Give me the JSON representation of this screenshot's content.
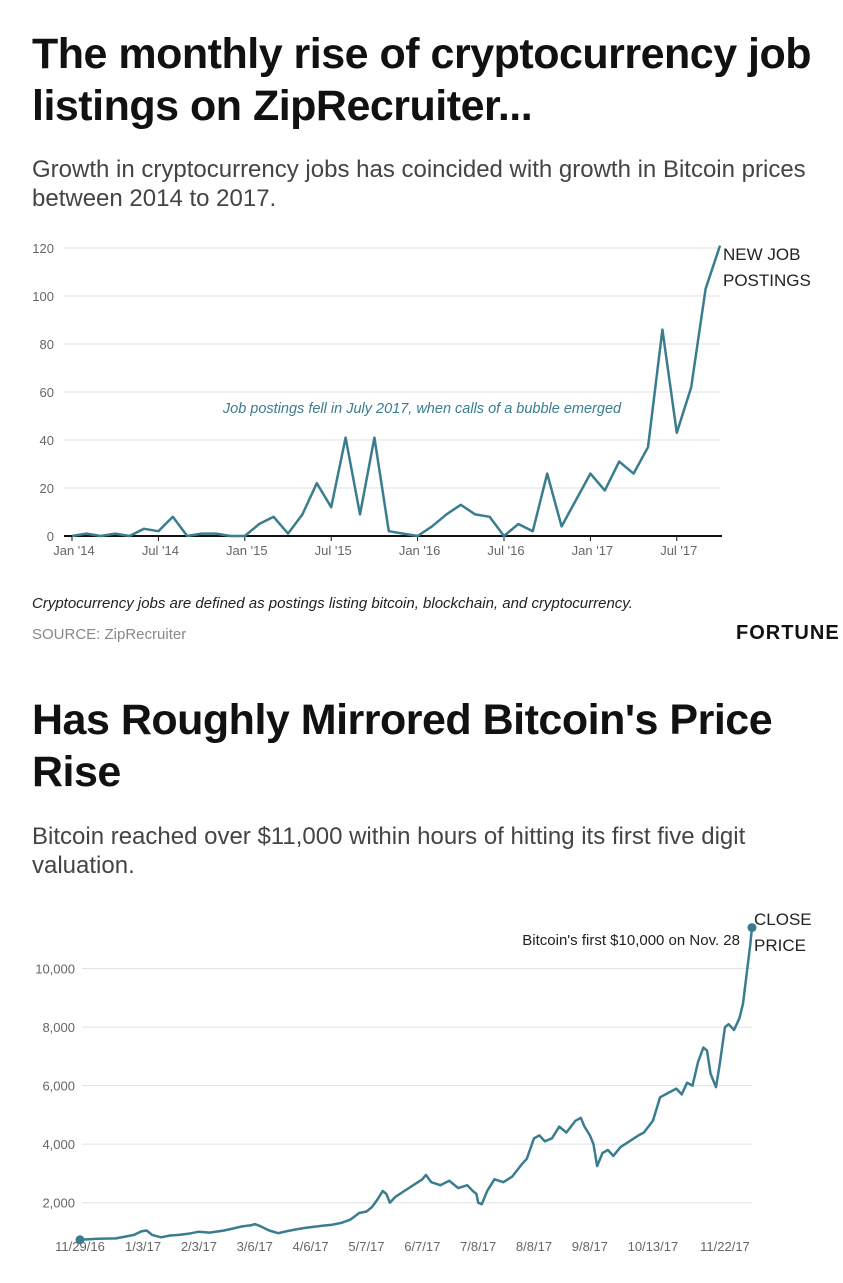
{
  "chart1": {
    "title": "The monthly rise of cryptocurrency job listings on ZipRecruiter...",
    "subtitle": "Growth in cryptocurrency jobs has coincided with growth in Bitcoin prices between 2014 to 2017.",
    "annotation": "Job postings fell in July 2017, when calls of a bubble emerged",
    "series_label": [
      "NEW JOB",
      "POSTINGS"
    ],
    "note": "Cryptocurrency jobs are defined as postings listing bitcoin, blockchain, and cryptocurrency.",
    "source": "SOURCE: ZipRecruiter",
    "brand": "FORTUNE"
  },
  "chart2": {
    "title": "Has Roughly Mirrored Bitcoin's Price Rise",
    "subtitle": "Bitcoin reached over $11,000 within hours of hitting its first five digit valuation.",
    "annotation": "Bitcoin's first $10,000 on Nov. 28",
    "series_label": [
      "CLOSE",
      "PRICE"
    ]
  },
  "colors": {
    "line": "#3a7d8e",
    "grid": "#e2e2e2",
    "axis": "#111111",
    "tick": "#666666"
  },
  "chart_data": [
    {
      "type": "line",
      "title": "The monthly rise of cryptocurrency job listings on ZipRecruiter...",
      "xlabel": "",
      "ylabel": "",
      "ylim": [
        0,
        120
      ],
      "yticks": [
        0,
        20,
        40,
        60,
        80,
        100,
        120
      ],
      "x_tick_labels": [
        "Jan '14",
        "Jul '14",
        "Jan '15",
        "Jul '15",
        "Jan '16",
        "Jul '16",
        "Jan '17",
        "Jul '17"
      ],
      "x_tick_months": [
        0,
        6,
        12,
        18,
        24,
        30,
        36,
        42
      ],
      "series": [
        {
          "name": "NEW JOB POSTINGS",
          "values": [
            0,
            1,
            0,
            1,
            0,
            3,
            2,
            8,
            0,
            1,
            1,
            0,
            0,
            5,
            8,
            1,
            9,
            22,
            12,
            41,
            9,
            41,
            2,
            1,
            0,
            4,
            9,
            13,
            9,
            8,
            0,
            5,
            2,
            26,
            4,
            15,
            26,
            19,
            31,
            26,
            37,
            86,
            43,
            62,
            103,
            121
          ]
        }
      ]
    },
    {
      "type": "line",
      "title": "Has Roughly Mirrored Bitcoin's Price Rise",
      "xlabel": "",
      "ylabel": "",
      "ylim": [
        1000,
        12000
      ],
      "yticks": [
        2000,
        4000,
        6000,
        8000,
        10000
      ],
      "ytick_labels": [
        "2,000",
        "4,000",
        "6,000",
        "8,000",
        "10,000"
      ],
      "x_tick_labels": [
        "11/29/16",
        "1/3/17",
        "2/3/17",
        "3/6/17",
        "4/6/17",
        "5/7/17",
        "6/7/17",
        "7/8/17",
        "8/8/17",
        "9/8/17",
        "10/13/17",
        "11/22/17"
      ],
      "x_tick_days": [
        0,
        35,
        66,
        97,
        128,
        159,
        190,
        221,
        252,
        283,
        318,
        358
      ],
      "series": [
        {
          "name": "CLOSE PRICE",
          "points": [
            [
              0,
              735
            ],
            [
              10,
              770
            ],
            [
              20,
              780
            ],
            [
              30,
              900
            ],
            [
              34,
              1020
            ],
            [
              37,
              1050
            ],
            [
              40,
              900
            ],
            [
              45,
              820
            ],
            [
              50,
              880
            ],
            [
              55,
              900
            ],
            [
              60,
              940
            ],
            [
              66,
              1010
            ],
            [
              72,
              980
            ],
            [
              80,
              1050
            ],
            [
              85,
              1120
            ],
            [
              90,
              1190
            ],
            [
              95,
              1230
            ],
            [
              97,
              1270
            ],
            [
              100,
              1200
            ],
            [
              105,
              1050
            ],
            [
              110,
              960
            ],
            [
              115,
              1030
            ],
            [
              120,
              1090
            ],
            [
              125,
              1140
            ],
            [
              130,
              1180
            ],
            [
              135,
              1220
            ],
            [
              140,
              1250
            ],
            [
              145,
              1310
            ],
            [
              150,
              1420
            ],
            [
              155,
              1650
            ],
            [
              159,
              1700
            ],
            [
              162,
              1850
            ],
            [
              165,
              2100
            ],
            [
              168,
              2400
            ],
            [
              170,
              2300
            ],
            [
              172,
              2000
            ],
            [
              175,
              2200
            ],
            [
              180,
              2400
            ],
            [
              185,
              2600
            ],
            [
              190,
              2800
            ],
            [
              192,
              2950
            ],
            [
              195,
              2700
            ],
            [
              200,
              2600
            ],
            [
              205,
              2750
            ],
            [
              210,
              2500
            ],
            [
              215,
              2600
            ],
            [
              218,
              2400
            ],
            [
              220,
              2300
            ],
            [
              221,
              2000
            ],
            [
              223,
              1950
            ],
            [
              226,
              2400
            ],
            [
              230,
              2800
            ],
            [
              235,
              2700
            ],
            [
              240,
              2900
            ],
            [
              245,
              3300
            ],
            [
              248,
              3500
            ],
            [
              252,
              4200
            ],
            [
              255,
              4300
            ],
            [
              258,
              4100
            ],
            [
              262,
              4200
            ],
            [
              266,
              4600
            ],
            [
              270,
              4400
            ],
            [
              275,
              4800
            ],
            [
              278,
              4900
            ],
            [
              280,
              4600
            ],
            [
              283,
              4300
            ],
            [
              285,
              4000
            ],
            [
              287,
              3250
            ],
            [
              290,
              3700
            ],
            [
              293,
              3800
            ],
            [
              296,
              3600
            ],
            [
              300,
              3900
            ],
            [
              305,
              4100
            ],
            [
              310,
              4300
            ],
            [
              313,
              4400
            ],
            [
              318,
              4800
            ],
            [
              322,
              5600
            ],
            [
              325,
              5700
            ],
            [
              328,
              5800
            ],
            [
              331,
              5900
            ],
            [
              334,
              5700
            ],
            [
              337,
              6100
            ],
            [
              340,
              6000
            ],
            [
              343,
              6800
            ],
            [
              346,
              7300
            ],
            [
              348,
              7200
            ],
            [
              350,
              6400
            ],
            [
              353,
              5950
            ],
            [
              355,
              6700
            ],
            [
              358,
              8000
            ],
            [
              360,
              8100
            ],
            [
              363,
              7900
            ],
            [
              366,
              8300
            ],
            [
              368,
              8800
            ],
            [
              370,
              9800
            ],
            [
              372,
              10800
            ],
            [
              373,
              11400
            ]
          ]
        }
      ]
    }
  ]
}
